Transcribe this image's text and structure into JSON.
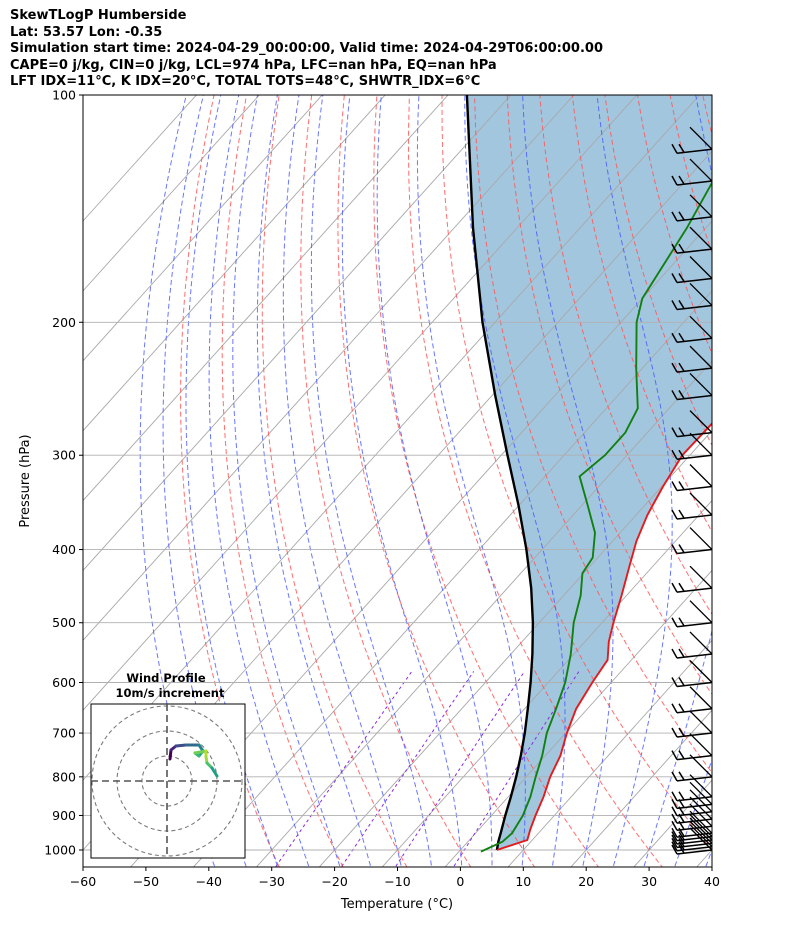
{
  "header": {
    "line1": "SkewTLogP Humberside",
    "line2": "Lat: 53.57   Lon: -0.35",
    "line3": "Simulation start time: 2024-04-29_00:00:00, Valid time: 2024-04-29T06:00:00.00",
    "line4": "CAPE=0 j/kg, CIN=0 j/kg, LCL=974 hPa, LFC=nan hPa, EQ=nan hPa",
    "line5": "LFT IDX=11°C, K IDX=20°C, TOTAL TOTS=48°C, SHWTR_IDX=6°C"
  },
  "colors": {
    "temperature": "#e41a1c",
    "dewpoint": "#118011",
    "parcel": "#000000",
    "cape_fill": "#a3c6df",
    "dry_adiabat": "#ff5555",
    "moist_adiabat": "#4455ff",
    "mixing_ratio": "#8a2be2",
    "isotherm": "#a8a8a8"
  },
  "chart_data": {
    "type": "line",
    "subtype": "skew-t log-p",
    "xlabel": "Temperature (°C)",
    "ylabel": "Pressure (hPa)",
    "xlim": [
      -60,
      40
    ],
    "ylim": [
      1050,
      100
    ],
    "y_scale": "log",
    "grid": true,
    "x_ticks": [
      -60,
      -50,
      -40,
      -30,
      -20,
      -10,
      0,
      10,
      20,
      30,
      40
    ],
    "x_tick_labels": [
      "−60",
      "−50",
      "−40",
      "−30",
      "−20",
      "−10",
      "0",
      "10",
      "20",
      "30",
      "40"
    ],
    "y_ticks": [
      1000,
      900,
      800,
      700,
      600,
      500,
      400,
      300,
      200,
      100
    ],
    "y_tick_labels": [
      "1000",
      "900",
      "800",
      "700",
      "600",
      "500",
      "400",
      "300",
      "200",
      "100"
    ],
    "series": [
      {
        "key": "temperature",
        "points": [
          [
            1000,
            5.8
          ],
          [
            970,
            9.2
          ],
          [
            940,
            8.2
          ],
          [
            900,
            7.0
          ],
          [
            850,
            5.6
          ],
          [
            800,
            3.8
          ],
          [
            750,
            2.4
          ],
          [
            700,
            0.2
          ],
          [
            650,
            -1.8
          ],
          [
            600,
            -3.0
          ],
          [
            560,
            -3.8
          ],
          [
            530,
            -6.2
          ],
          [
            500,
            -8.2
          ],
          [
            460,
            -10.8
          ],
          [
            420,
            -13.8
          ],
          [
            390,
            -16.2
          ],
          [
            360,
            -18.2
          ],
          [
            330,
            -19.8
          ],
          [
            300,
            -21.2
          ],
          [
            270,
            -21.0
          ],
          [
            255,
            -19.0
          ],
          [
            240,
            -15.0
          ],
          [
            220,
            -11.0
          ],
          [
            200,
            -6.0
          ],
          [
            175,
            -2.0
          ],
          [
            160,
            -2.2
          ],
          [
            145,
            -3.3
          ],
          [
            130,
            -4.3
          ],
          [
            118,
            -3.5
          ],
          [
            108,
            -1.8
          ],
          [
            100,
            -0.6
          ]
        ]
      },
      {
        "key": "dewpoint",
        "points": [
          [
            1005,
            3.5
          ],
          [
            975,
            5.5
          ],
          [
            950,
            5.8
          ],
          [
            900,
            5.0
          ],
          [
            850,
            3.5
          ],
          [
            800,
            1.5
          ],
          [
            750,
            -0.5
          ],
          [
            700,
            -3.0
          ],
          [
            650,
            -5.0
          ],
          [
            600,
            -7.3
          ],
          [
            550,
            -10.5
          ],
          [
            500,
            -14.5
          ],
          [
            460,
            -17.3
          ],
          [
            430,
            -20.2
          ],
          [
            410,
            -20.8
          ],
          [
            380,
            -24.0
          ],
          [
            350,
            -29.0
          ],
          [
            320,
            -34.5
          ],
          [
            300,
            -33.5
          ],
          [
            280,
            -33.5
          ],
          [
            260,
            -35.0
          ],
          [
            230,
            -41.0
          ],
          [
            200,
            -47.5
          ],
          [
            186,
            -50.0
          ],
          [
            150,
            -53.0
          ],
          [
            120,
            -57.0
          ],
          [
            100,
            -61.5
          ]
        ]
      },
      {
        "key": "parcel",
        "points": [
          [
            1000,
            5.8
          ],
          [
            974,
            4.8
          ],
          [
            950,
            4.0
          ],
          [
            900,
            2.2
          ],
          [
            850,
            0.4
          ],
          [
            800,
            -1.6
          ],
          [
            750,
            -3.9
          ],
          [
            700,
            -6.5
          ],
          [
            650,
            -9.5
          ],
          [
            600,
            -12.8
          ],
          [
            550,
            -16.6
          ],
          [
            500,
            -21.0
          ],
          [
            450,
            -26.2
          ],
          [
            400,
            -32.5
          ],
          [
            350,
            -40.0
          ],
          [
            300,
            -49.0
          ],
          [
            250,
            -59.5
          ],
          [
            200,
            -72.0
          ],
          [
            150,
            -87.0
          ],
          [
            100,
            -107.0
          ]
        ]
      }
    ],
    "wind_barb_pressures": [
      1000,
      990,
      980,
      970,
      960,
      950,
      930,
      910,
      890,
      870,
      850,
      800,
      750,
      700,
      650,
      600,
      550,
      500,
      450,
      400,
      360,
      330,
      300,
      280,
      250,
      230,
      210,
      190,
      175,
      160,
      145,
      130,
      118
    ],
    "inset": {
      "title": "Wind Profile",
      "subtitle": "10m/s increment",
      "rings": [
        10,
        20,
        30
      ]
    }
  }
}
